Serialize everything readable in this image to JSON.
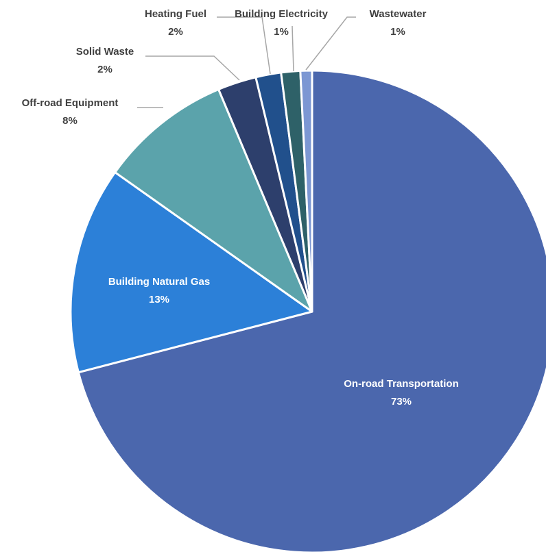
{
  "chart_data": {
    "type": "pie",
    "slices": [
      {
        "label": "On-road Transportation",
        "value": 73,
        "display": "73%",
        "color": "#4B67AD"
      },
      {
        "label": "Building Natural Gas",
        "value": 13,
        "display": "13%",
        "color": "#2C80D8"
      },
      {
        "label": "Off-road Equipment",
        "value": 8,
        "display": "8%",
        "color": "#5BA3AB"
      },
      {
        "label": "Solid Waste",
        "value": 2,
        "display": "2%",
        "color": "#2D3F6C"
      },
      {
        "label": "Heating Fuel",
        "value": 2,
        "display": "2%",
        "color": "#21508C"
      },
      {
        "label": "Building Electricity",
        "value": 1,
        "display": "1%",
        "color": "#2E6168"
      },
      {
        "label": "Wastewater",
        "value": 1,
        "display": "1%",
        "color": "#7C97D3"
      }
    ],
    "legend": "none",
    "data_labels": "category and percentage"
  }
}
